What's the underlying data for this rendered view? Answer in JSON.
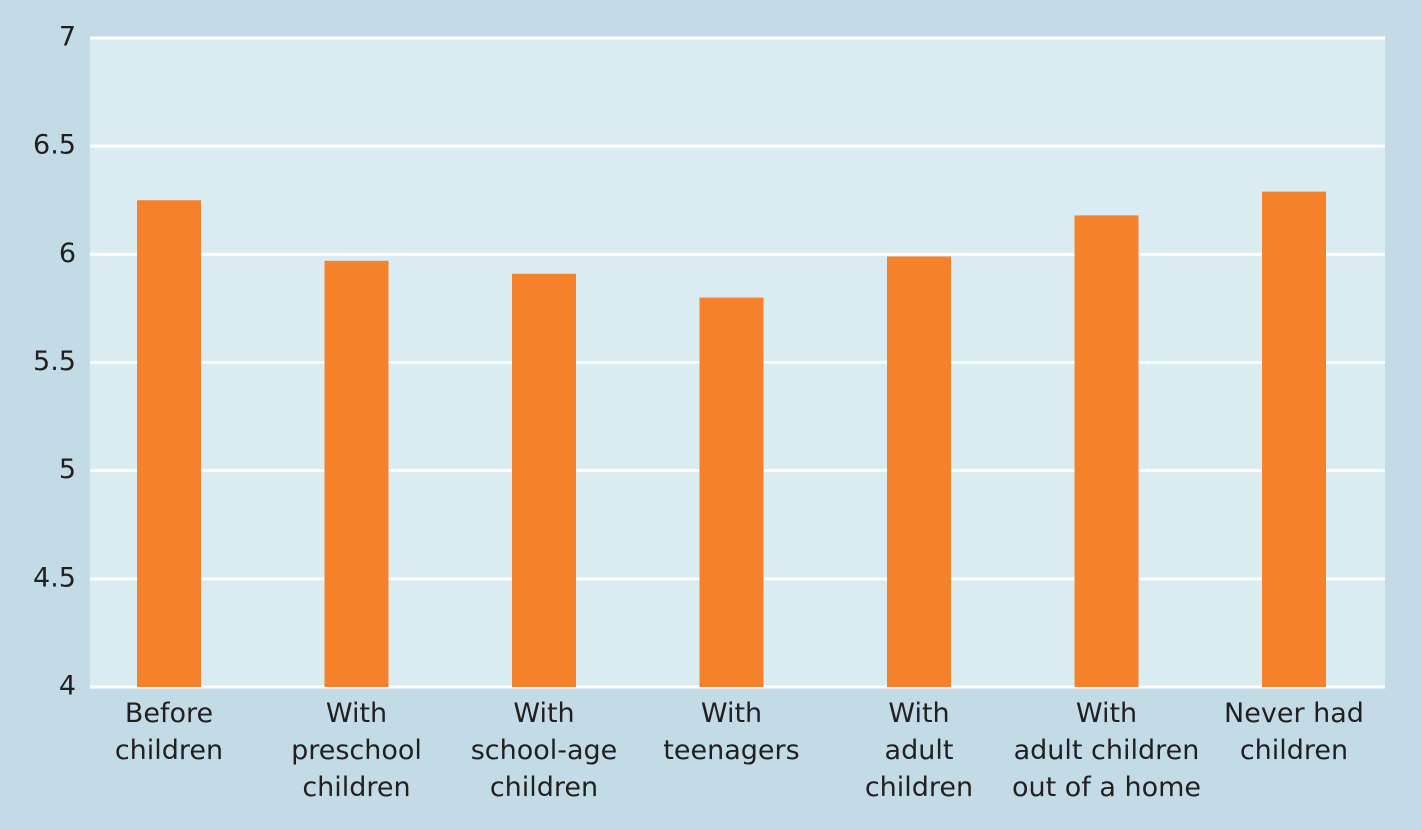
{
  "chart_data": {
    "type": "bar",
    "categories": [
      "Before\nchildren",
      "With\npreschool\nchildren",
      "With\nschool-age\nchildren",
      "With\nteenagers",
      "With\nadult\nchildren",
      "With\nadult children\nout of a home",
      "Never had\nchildren"
    ],
    "values": [
      6.25,
      5.97,
      5.91,
      5.8,
      5.99,
      6.18,
      6.29
    ],
    "color": "#f5822a",
    "ylim": [
      4,
      7
    ],
    "yticks": [
      4,
      4.5,
      5,
      5.5,
      6,
      6.5,
      7
    ],
    "grid": true
  }
}
